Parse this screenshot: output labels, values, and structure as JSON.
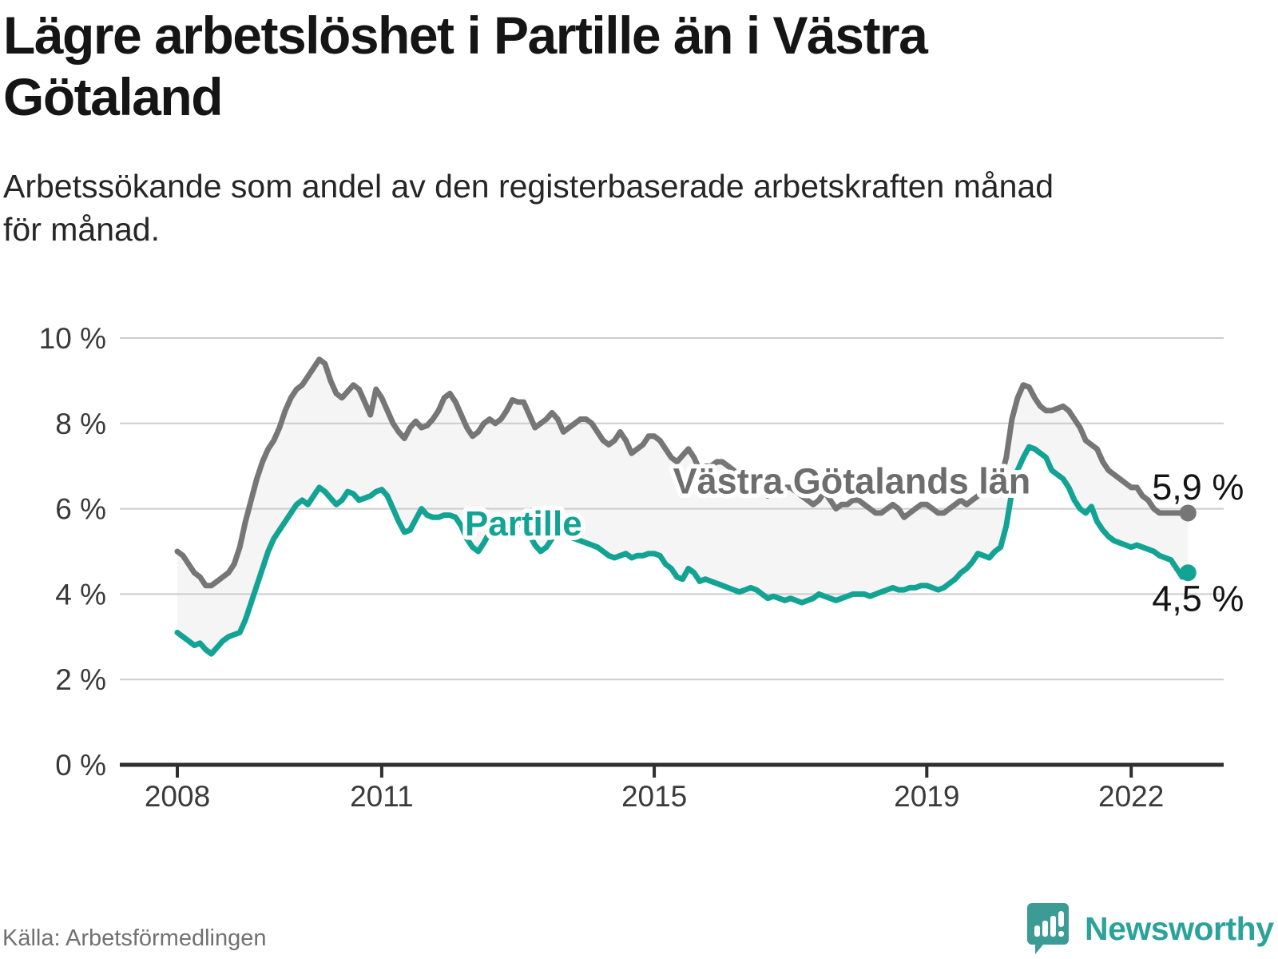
{
  "header": {
    "title": "Lägre arbetslöshet i Partille än i Västra\nGötaland",
    "subtitle": "Arbetssökande som andel av den registerbaserade arbetskraften månad\nför månad."
  },
  "footer": {
    "source": "Källa: Arbetsförmedlingen",
    "brand_name": "Newsworthy"
  },
  "colors": {
    "background": "#ffffff",
    "title_text": "#151515",
    "subtitle_text": "#262626",
    "axis_line": "#2e2e2e",
    "axis_label": "#3a3a3a",
    "gridline": "#cdcdcd",
    "fill_between": "rgba(125,125,125,0.08)",
    "series_region": "#767676",
    "series_municipality": "#13a394",
    "region_label": "#6d6d6d",
    "end_value_text": "#141414",
    "source_text": "#717171",
    "brand_teal": "#2ba39b",
    "brand_icon": "#3d9b96"
  },
  "chart_data": {
    "type": "line",
    "frequency": "monthly",
    "x_start": {
      "year": 2008,
      "month": 1
    },
    "x_end": {
      "year": 2022,
      "month": 11
    },
    "ylim": [
      0,
      10
    ],
    "grid": "horizontal",
    "legend_position": "inline-labels",
    "y_ticks": [
      {
        "value": 0,
        "label": "0 %"
      },
      {
        "value": 2,
        "label": "2 %"
      },
      {
        "value": 4,
        "label": "4 %"
      },
      {
        "value": 6,
        "label": "6 %"
      },
      {
        "value": 8,
        "label": "8 %"
      },
      {
        "value": 10,
        "label": "10 %"
      }
    ],
    "x_ticks": [
      {
        "value": 2008,
        "label": "2008"
      },
      {
        "value": 2011,
        "label": "2011"
      },
      {
        "value": 2015,
        "label": "2015"
      },
      {
        "value": 2019,
        "label": "2019"
      },
      {
        "value": 2022,
        "label": "2022"
      }
    ],
    "fill_between_series": true,
    "annotations": [
      {
        "text": "Partille",
        "x": 2013.08,
        "y": 5.65,
        "color": "#13a394",
        "font_size": 44
      },
      {
        "text": "Västra Götalands län",
        "x": 2017.9,
        "y": 6.65,
        "color": "#6d6d6d",
        "font_size": 45
      }
    ],
    "series": [
      {
        "name": "Västra Götalands län",
        "color": "#767676",
        "end_label": "5,9 %",
        "end_value": 5.9,
        "values": [
          5.0,
          4.9,
          4.7,
          4.5,
          4.4,
          4.2,
          4.2,
          4.3,
          4.4,
          4.5,
          4.7,
          5.1,
          5.7,
          6.2,
          6.7,
          7.1,
          7.4,
          7.6,
          7.9,
          8.3,
          8.6,
          8.8,
          8.9,
          9.1,
          9.3,
          9.5,
          9.4,
          9.0,
          8.7,
          8.6,
          8.75,
          8.9,
          8.8,
          8.5,
          8.2,
          8.8,
          8.6,
          8.3,
          8.0,
          7.8,
          7.65,
          7.9,
          8.05,
          7.9,
          7.95,
          8.1,
          8.3,
          8.6,
          8.7,
          8.5,
          8.2,
          7.9,
          7.7,
          7.8,
          8.0,
          8.1,
          8.0,
          8.1,
          8.3,
          8.55,
          8.5,
          8.5,
          8.2,
          7.9,
          8.0,
          8.1,
          8.25,
          8.1,
          7.8,
          7.9,
          8.0,
          8.1,
          8.1,
          8.0,
          7.8,
          7.6,
          7.5,
          7.6,
          7.8,
          7.6,
          7.3,
          7.4,
          7.5,
          7.7,
          7.7,
          7.6,
          7.4,
          7.2,
          7.1,
          7.25,
          7.4,
          7.2,
          6.9,
          7.0,
          7.0,
          7.1,
          7.1,
          7.0,
          6.9,
          6.7,
          6.5,
          6.6,
          6.7,
          6.6,
          6.3,
          6.4,
          6.4,
          6.5,
          6.5,
          6.4,
          6.3,
          6.2,
          6.1,
          6.2,
          6.4,
          6.2,
          6.0,
          6.1,
          6.1,
          6.2,
          6.2,
          6.1,
          6.0,
          5.9,
          5.9,
          6.0,
          6.1,
          6.0,
          5.8,
          5.9,
          6.0,
          6.1,
          6.1,
          6.0,
          5.9,
          5.9,
          6.0,
          6.1,
          6.2,
          6.1,
          6.2,
          6.3,
          6.4,
          6.5,
          6.6,
          6.7,
          7.2,
          8.1,
          8.6,
          8.9,
          8.85,
          8.6,
          8.4,
          8.3,
          8.3,
          8.35,
          8.4,
          8.3,
          8.1,
          7.9,
          7.6,
          7.5,
          7.4,
          7.1,
          6.9,
          6.8,
          6.7,
          6.6,
          6.5,
          6.5,
          6.3,
          6.2,
          6.0,
          5.9,
          5.9,
          5.9,
          5.9,
          5.9,
          5.9
        ]
      },
      {
        "name": "Partille",
        "color": "#13a394",
        "end_label": "4,5 %",
        "end_value": 4.5,
        "values": [
          3.1,
          3.0,
          2.9,
          2.8,
          2.85,
          2.7,
          2.6,
          2.75,
          2.9,
          3.0,
          3.05,
          3.1,
          3.4,
          3.8,
          4.2,
          4.6,
          5.0,
          5.3,
          5.5,
          5.7,
          5.9,
          6.1,
          6.2,
          6.1,
          6.3,
          6.5,
          6.4,
          6.25,
          6.1,
          6.2,
          6.4,
          6.35,
          6.2,
          6.25,
          6.3,
          6.4,
          6.45,
          6.3,
          6.0,
          5.7,
          5.45,
          5.5,
          5.75,
          6.0,
          5.85,
          5.8,
          5.8,
          5.85,
          5.85,
          5.8,
          5.6,
          5.3,
          5.1,
          5.0,
          5.2,
          5.45,
          5.6,
          5.5,
          5.55,
          5.6,
          5.65,
          5.6,
          5.4,
          5.15,
          5.0,
          5.1,
          5.3,
          5.5,
          5.4,
          5.35,
          5.3,
          5.25,
          5.2,
          5.15,
          5.1,
          5.0,
          4.9,
          4.85,
          4.9,
          4.95,
          4.85,
          4.9,
          4.9,
          4.95,
          4.95,
          4.9,
          4.7,
          4.6,
          4.4,
          4.35,
          4.6,
          4.5,
          4.3,
          4.35,
          4.3,
          4.25,
          4.2,
          4.15,
          4.1,
          4.05,
          4.1,
          4.15,
          4.1,
          4.0,
          3.9,
          3.95,
          3.9,
          3.85,
          3.9,
          3.85,
          3.8,
          3.85,
          3.9,
          4.0,
          3.95,
          3.9,
          3.85,
          3.9,
          3.95,
          4.0,
          4.0,
          4.0,
          3.95,
          4.0,
          4.05,
          4.1,
          4.15,
          4.1,
          4.1,
          4.15,
          4.15,
          4.2,
          4.2,
          4.15,
          4.1,
          4.15,
          4.25,
          4.35,
          4.5,
          4.6,
          4.75,
          4.95,
          4.9,
          4.85,
          5.0,
          5.1,
          5.6,
          6.4,
          6.9,
          7.2,
          7.45,
          7.4,
          7.3,
          7.2,
          6.9,
          6.8,
          6.7,
          6.5,
          6.2,
          6.0,
          5.9,
          6.05,
          5.7,
          5.5,
          5.35,
          5.25,
          5.2,
          5.15,
          5.1,
          5.15,
          5.1,
          5.05,
          5.0,
          4.9,
          4.85,
          4.8,
          4.6,
          4.4,
          4.5
        ]
      }
    ]
  }
}
